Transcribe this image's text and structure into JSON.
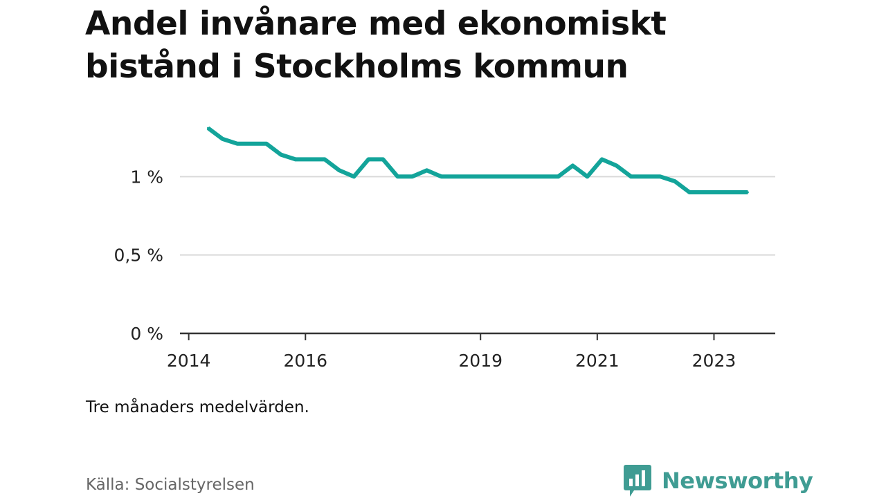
{
  "title": "Andel invånare med ekonomiskt bistånd i Stockholms kommun",
  "note": "Tre månaders medelvärden.",
  "source": "Källa: Socialstyrelsen",
  "brand": "Newsworthy",
  "colors": {
    "line": "#13a49a",
    "grid": "#d9d9d9",
    "axis": "#333333",
    "brand": "#3f9c93"
  },
  "chart_data": {
    "type": "line",
    "x_axis": {
      "type": "date",
      "range": [
        2013.85,
        2024.05
      ],
      "ticks": [
        2014,
        2016,
        2019,
        2021,
        2023
      ],
      "tick_labels": [
        "2014",
        "2016",
        "2019",
        "2021",
        "2023"
      ]
    },
    "y_axis": {
      "range": [
        0,
        1.5
      ],
      "ticks": [
        0,
        0.5,
        1
      ],
      "tick_labels": [
        "0 %",
        "0,5 %",
        "1 %"
      ]
    },
    "grid": true,
    "series": [
      {
        "x": [
          2014.33,
          2014.58,
          2014.83,
          2015.08,
          2015.33,
          2015.58,
          2015.83,
          2016.08,
          2016.33,
          2016.58,
          2016.83,
          2017.08,
          2017.33,
          2017.58,
          2017.83,
          2018.08,
          2018.33,
          2018.58,
          2018.83,
          2019.08,
          2019.33,
          2019.58,
          2019.83,
          2020.08,
          2020.33,
          2020.58,
          2020.83,
          2021.08,
          2021.33,
          2021.58,
          2021.83,
          2022.08,
          2022.33,
          2022.58,
          2022.83,
          2023.08,
          2023.33,
          2023.58
        ],
        "y": [
          1.31,
          1.24,
          1.21,
          1.21,
          1.21,
          1.14,
          1.11,
          1.11,
          1.11,
          1.04,
          1.0,
          1.11,
          1.11,
          1.0,
          1.0,
          1.04,
          1.0,
          1.0,
          1.0,
          1.0,
          1.0,
          1.0,
          1.0,
          1.0,
          1.0,
          1.07,
          1.0,
          1.11,
          1.07,
          1.0,
          1.0,
          1.0,
          0.97,
          0.9,
          0.9,
          0.9,
          0.9,
          0.9
        ]
      }
    ]
  }
}
